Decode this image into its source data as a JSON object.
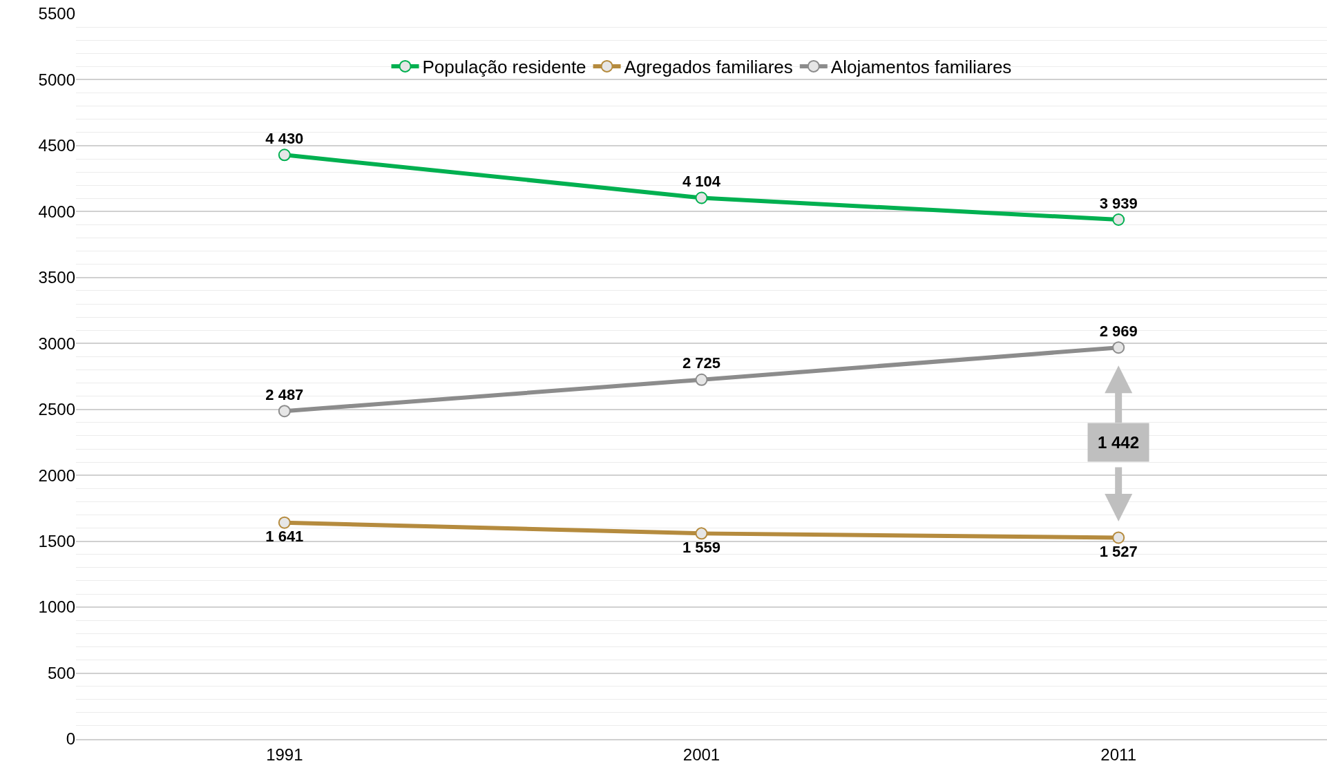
{
  "chart_data": {
    "type": "line",
    "categories": [
      "1991",
      "2001",
      "2011"
    ],
    "series": [
      {
        "name": "População residente",
        "color": "#00b050",
        "values": [
          4430,
          4104,
          3939
        ],
        "value_labels": [
          "4 430",
          "4 104",
          "3 939"
        ]
      },
      {
        "name": "Agregados familiares",
        "color": "#b58b3e",
        "values": [
          1641,
          1559,
          1527
        ],
        "value_labels": [
          "1 641",
          "1 559",
          "1 527"
        ]
      },
      {
        "name": "Alojamentos familiares",
        "color": "#8c8c8c",
        "values": [
          2487,
          2725,
          2969
        ],
        "value_labels": [
          "2 487",
          "2 725",
          "2 969"
        ]
      }
    ],
    "ylim": [
      0,
      5500
    ],
    "yticks": [
      0,
      500,
      1000,
      1500,
      2000,
      2500,
      3000,
      3500,
      4000,
      4500,
      5000,
      5500
    ],
    "grid": "y",
    "legend": "top",
    "marker": "circle",
    "line_style": "solid",
    "annotations": [
      "1 442"
    ]
  }
}
